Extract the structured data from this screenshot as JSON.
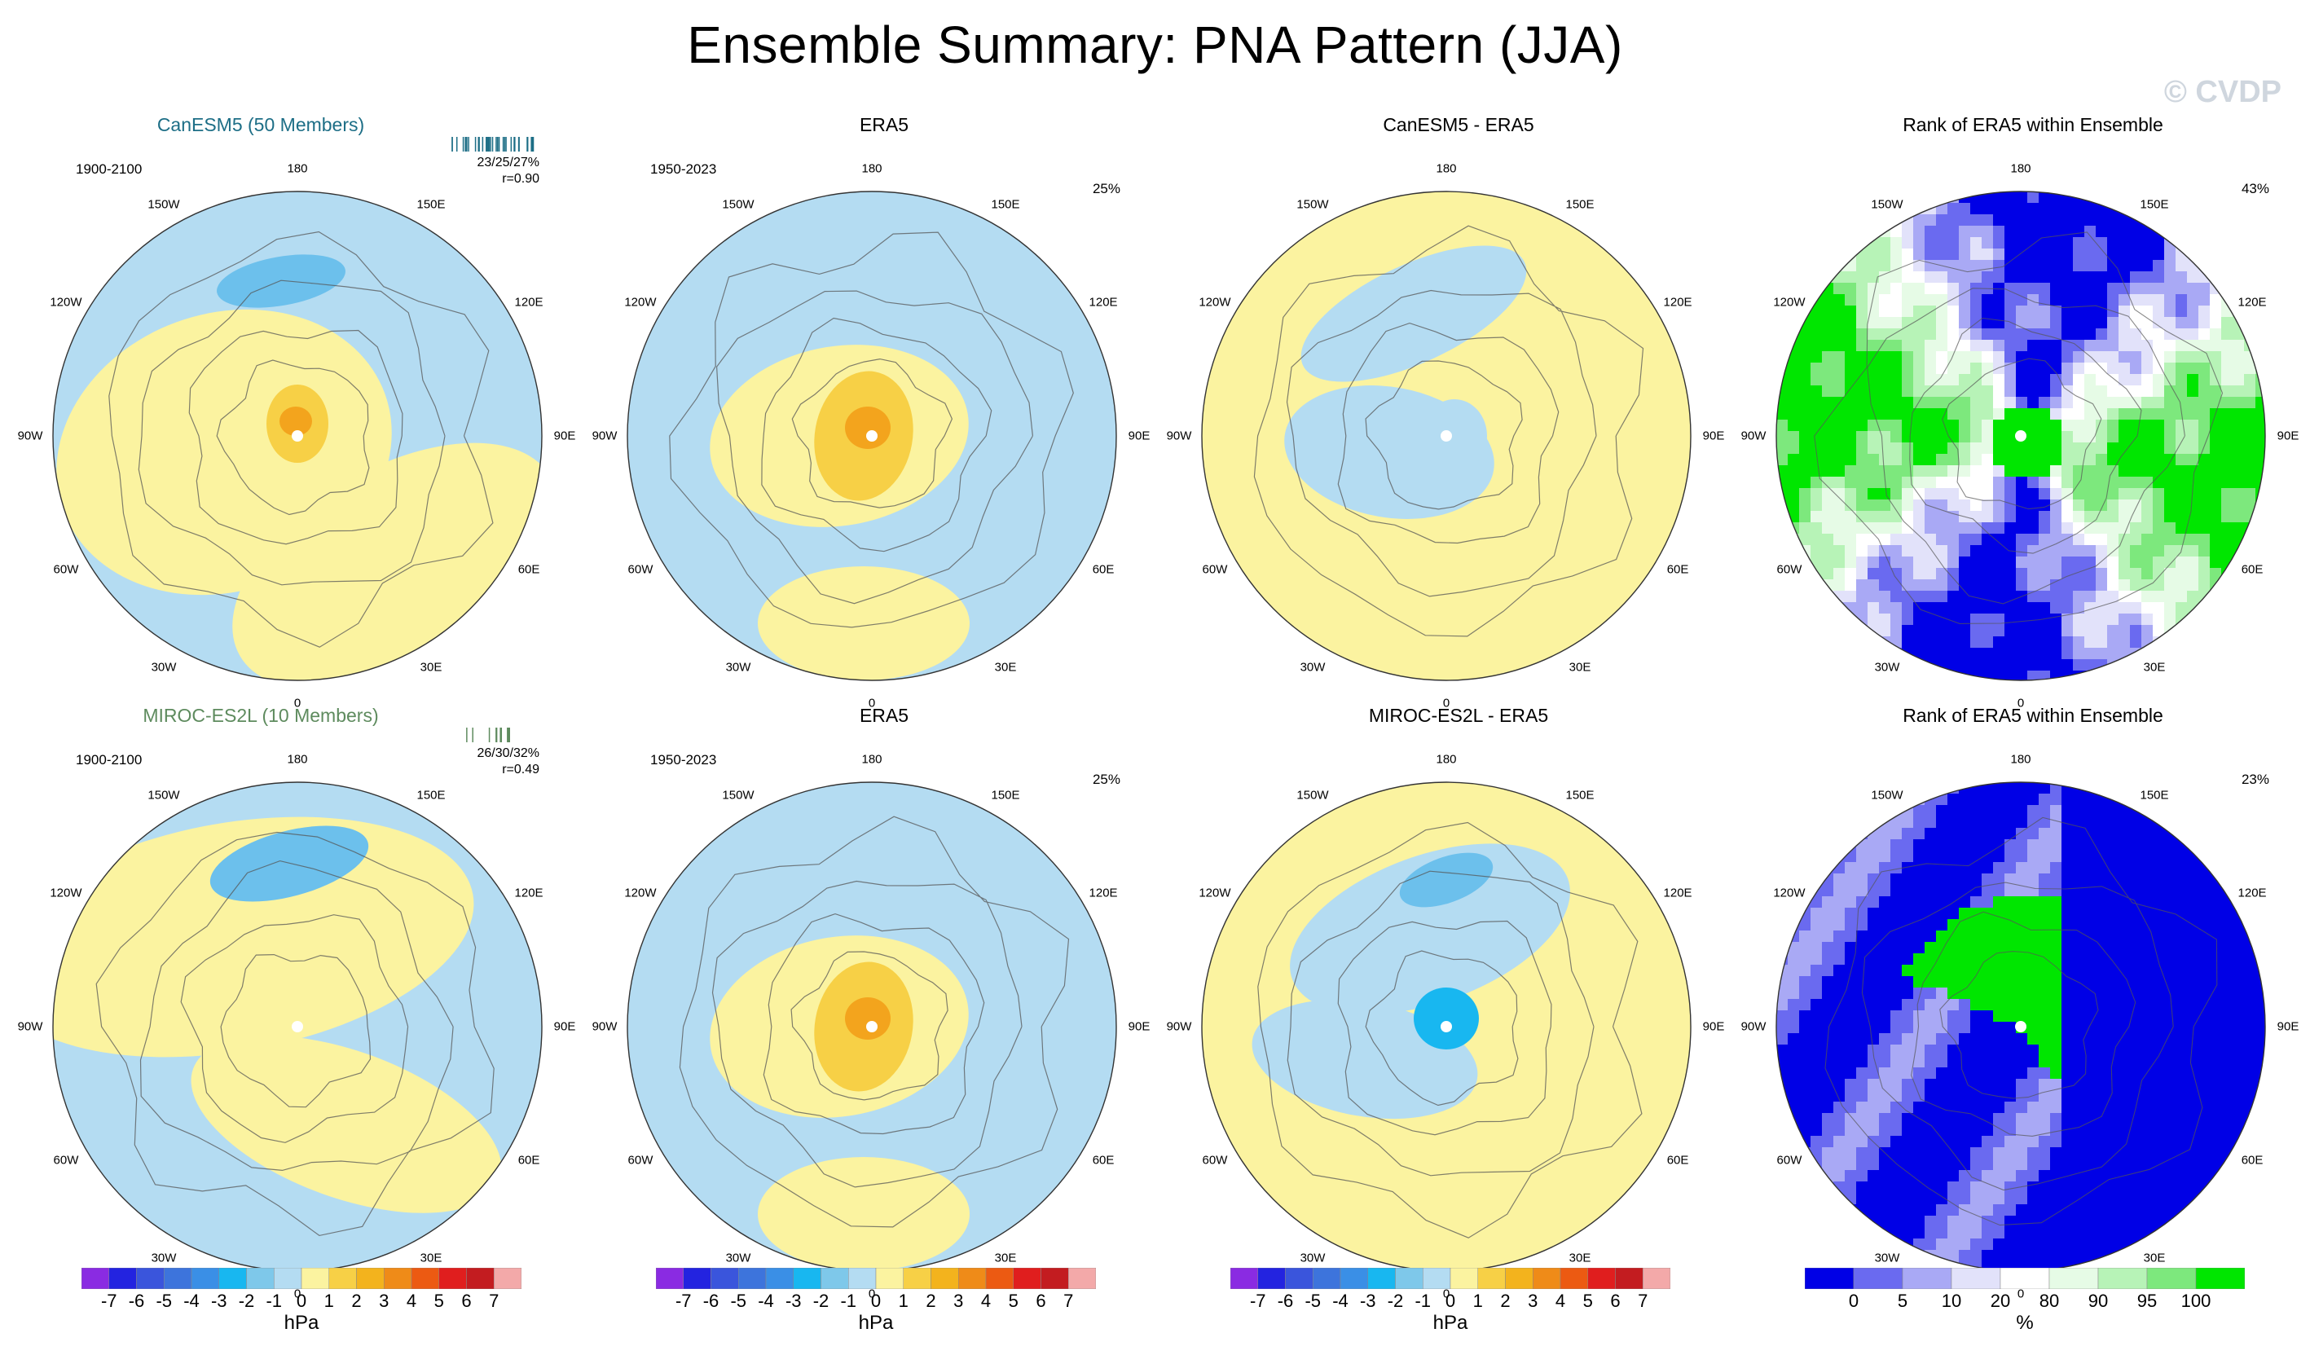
{
  "title": "Ensemble Summary: PNA Pattern (JJA)",
  "watermark": "© CVDP",
  "lon_labels": [
    "180",
    "150E",
    "120E",
    "90E",
    "60E",
    "30E",
    "0",
    "30W",
    "60W",
    "90W",
    "120W",
    "150W"
  ],
  "rows": [
    {
      "model_title": "CanESM5 (50 Members)",
      "model_years": "1900-2100",
      "model_stats": [
        "23/25/27%",
        "r=0.90"
      ],
      "obs_title": "ERA5",
      "obs_years": "1950-2023",
      "obs_pct": "25%",
      "diff_title": "CanESM5 - ERA5",
      "rank_title": "Rank of ERA5 within Ensemble",
      "rank_pct": "43%"
    },
    {
      "model_title": "MIROC-ES2L (10 Members)",
      "model_years": "1900-2100",
      "model_stats": [
        "26/30/32%",
        "r=0.49"
      ],
      "obs_title": "ERA5",
      "obs_years": "1950-2023",
      "obs_pct": "25%",
      "diff_title": "MIROC-ES2L - ERA5",
      "rank_title": "Rank of ERA5 within Ensemble",
      "rank_pct": "23%"
    }
  ],
  "colorbar_hpa": {
    "labels": [
      "-7",
      "-6",
      "-5",
      "-4",
      "-3",
      "-2",
      "-1",
      "0",
      "1",
      "2",
      "3",
      "4",
      "5",
      "6",
      "7"
    ],
    "unit": "hPa",
    "colors": [
      "#8a2be2",
      "#2323e0",
      "#3a55dc",
      "#3d74dc",
      "#3a8fe6",
      "#18b7f0",
      "#7ec8ea",
      "#b4dcf2",
      "#fbf3a0",
      "#f7d046",
      "#f3b31d",
      "#ef8b18",
      "#ec5a12",
      "#e01e1e",
      "#c31c20",
      "#f3a9a9"
    ]
  },
  "colorbar_rank": {
    "labels": [
      "0",
      "5",
      "10",
      "20",
      "80",
      "90",
      "95",
      "100"
    ],
    "unit": "%",
    "colors": [
      "#0000e6",
      "#6a6af0",
      "#a9a9f5",
      "#e2e2fa",
      "#ffffff",
      "#e6fbe6",
      "#b7f3b7",
      "#7de87d",
      "#00e600"
    ]
  },
  "colors": {
    "positive_light": "#fbf3a0",
    "positive_mid": "#f7d046",
    "positive_strong": "#f3a41d",
    "negative_light": "#b4dcf2",
    "negative_mid": "#6cc0ec",
    "negative_strong": "#18b7f0",
    "rank_low": "#0000e6",
    "rank_high": "#00e600",
    "land_outline": "#555555"
  }
}
